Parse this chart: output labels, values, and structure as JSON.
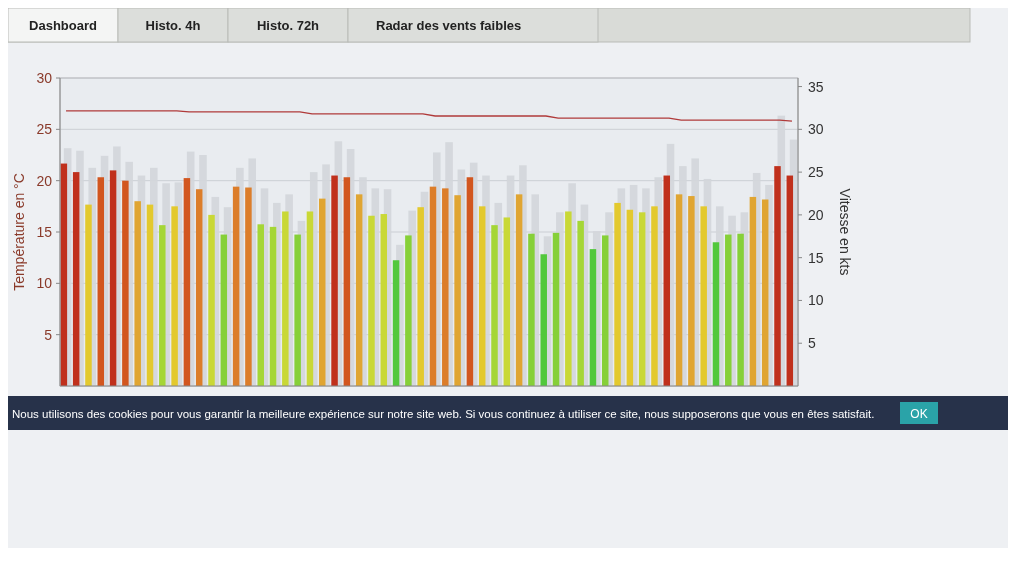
{
  "chart_data": {
    "type": "bar",
    "categories": [
      null,
      null,
      null,
      null,
      null,
      null,
      null,
      null,
      null,
      null,
      null,
      null,
      null,
      null,
      null,
      null,
      null,
      null,
      null,
      null,
      null,
      null,
      null,
      null,
      null,
      null,
      null,
      null,
      null,
      null,
      null,
      null,
      null,
      null,
      null,
      null,
      null,
      null,
      null,
      null,
      null,
      null,
      null,
      null,
      null,
      null,
      null,
      null,
      null,
      null,
      null,
      null,
      null,
      null,
      null,
      null,
      null,
      null,
      null,
      null
    ],
    "ylabel": "Température en °C",
    "y2label": "Vitesse en kts",
    "ylim": [
      0,
      30
    ],
    "yticks": [
      5,
      10,
      15,
      20,
      25,
      30
    ],
    "y2lim": [
      0,
      36
    ],
    "y2ticks": [
      5,
      10,
      15,
      20,
      25,
      30,
      35
    ],
    "grid": "y",
    "series": [
      {
        "axis": "y2",
        "color": "#d3d6da",
        "values": [
          27.8,
          27.5,
          25.5,
          26.9,
          28.0,
          26.2,
          24.6,
          25.5,
          23.7,
          23.8,
          27.4,
          27.0,
          22.1,
          20.9,
          25.5,
          26.6,
          23.1,
          21.4,
          22.4,
          19.3,
          25.0,
          25.9,
          28.6,
          27.7,
          24.4,
          23.1,
          23.0,
          16.5,
          20.5,
          22.7,
          27.3,
          28.5,
          25.3,
          26.1,
          24.6,
          21.4,
          24.6,
          25.8,
          22.4,
          17.5,
          20.3,
          23.7,
          21.2,
          18.1,
          20.3,
          23.1,
          23.5,
          23.1,
          24.4,
          28.3,
          25.7,
          26.6,
          24.2,
          21.0,
          19.9,
          20.3,
          24.9,
          23.5,
          31.6,
          28.8
        ]
      },
      {
        "axis": "y2",
        "values": [
          26.0,
          25.0,
          21.2,
          24.4,
          25.2,
          24.0,
          21.6,
          21.2,
          18.8,
          21.0,
          24.3,
          23.0,
          20.0,
          17.7,
          23.3,
          23.2,
          18.9,
          18.6,
          20.4,
          17.7,
          20.4,
          21.9,
          24.6,
          24.4,
          22.4,
          19.9,
          20.1,
          14.7,
          17.6,
          20.9,
          23.3,
          23.1,
          22.3,
          24.4,
          21.0,
          18.8,
          19.7,
          22.4,
          17.8,
          15.4,
          17.9,
          20.4,
          19.3,
          16.0,
          17.6,
          21.4,
          20.6,
          20.3,
          21.0,
          24.6,
          22.4,
          22.2,
          21.0,
          16.8,
          17.7,
          17.8,
          22.1,
          21.8,
          25.7,
          24.6
        ],
        "colors": [
          "#c0301c",
          "#c0301c",
          "#e3c92e",
          "#d2561f",
          "#c0301c",
          "#d2561f",
          "#e0a532",
          "#e3c92e",
          "#a5d636",
          "#e3c92e",
          "#d2561f",
          "#dc7d2a",
          "#c9d836",
          "#86d038",
          "#dc7d2a",
          "#dc7d2a",
          "#a5d636",
          "#a5d636",
          "#c9d836",
          "#86d038",
          "#c9d836",
          "#e0a532",
          "#c0301c",
          "#d2561f",
          "#e0a532",
          "#c9d836",
          "#c9d836",
          "#52c83c",
          "#86d038",
          "#e3c92e",
          "#dc7d2a",
          "#dc7d2a",
          "#e0a532",
          "#d2561f",
          "#e3c92e",
          "#a5d636",
          "#c9d836",
          "#e0a532",
          "#86d038",
          "#52c83c",
          "#86d038",
          "#c9d836",
          "#a5d636",
          "#52c83c",
          "#86d038",
          "#e3c92e",
          "#e3c92e",
          "#c9d836",
          "#e3c92e",
          "#c0301c",
          "#e0a532",
          "#e0a532",
          "#e3c92e",
          "#52c83c",
          "#86d038",
          "#86d038",
          "#e0a532",
          "#e0a532",
          "#c0301c",
          "#c0301c"
        ]
      },
      {
        "type": "line",
        "axis": "y",
        "color": "#b03a3a",
        "values": [
          26.8,
          26.8,
          26.8,
          26.8,
          26.8,
          26.8,
          26.8,
          26.8,
          26.8,
          26.8,
          26.7,
          26.7,
          26.7,
          26.7,
          26.7,
          26.7,
          26.7,
          26.7,
          26.7,
          26.7,
          26.5,
          26.5,
          26.5,
          26.5,
          26.5,
          26.5,
          26.5,
          26.5,
          26.5,
          26.5,
          26.3,
          26.3,
          26.3,
          26.3,
          26.3,
          26.3,
          26.3,
          26.3,
          26.3,
          26.3,
          26.1,
          26.1,
          26.1,
          26.1,
          26.1,
          26.1,
          26.1,
          26.1,
          26.1,
          26.1,
          25.9,
          25.9,
          25.9,
          25.9,
          25.9,
          25.9,
          25.9,
          25.9,
          25.9,
          25.8
        ]
      }
    ],
    "annotations": [
      "Dashboard",
      "Histo. 4h",
      "Histo. 72h",
      "Radar des vents faibles",
      "Nous utilisons des cookies pour vous garantir la meilleure expérience sur notre site web. Si vous continuez à utiliser ce site, nous supposerons que vous en êtes satisfait.",
      "OK"
    ]
  }
}
